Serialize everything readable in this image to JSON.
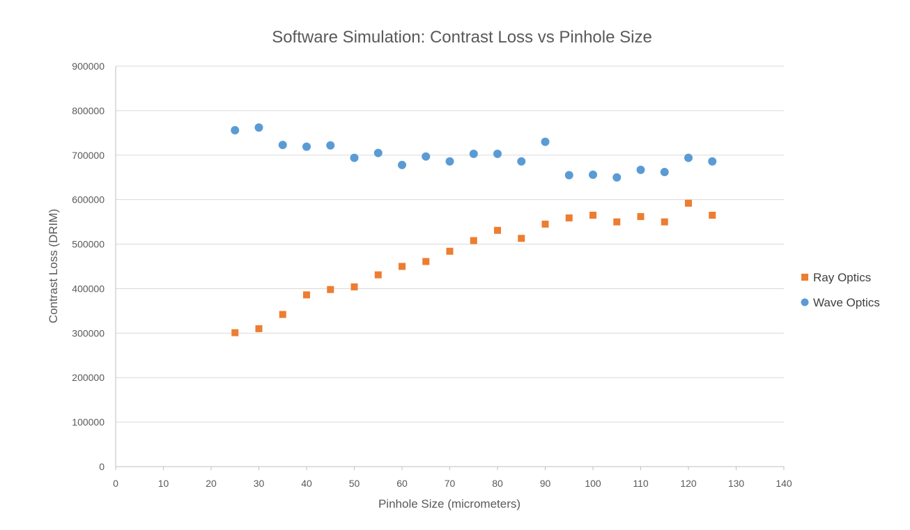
{
  "chart_data": {
    "type": "scatter",
    "title": "Software Simulation: Contrast Loss vs Pinhole Size",
    "xlabel": "Pinhole Size (micrometers)",
    "ylabel": "Contrast Loss (DRIM)",
    "xlim": [
      0,
      140
    ],
    "ylim": [
      0,
      900000
    ],
    "xticks": [
      0,
      10,
      20,
      30,
      40,
      50,
      60,
      70,
      80,
      90,
      100,
      110,
      120,
      130,
      140
    ],
    "yticks": [
      0,
      100000,
      200000,
      300000,
      400000,
      500000,
      600000,
      700000,
      800000,
      900000
    ],
    "grid": "horizontal",
    "legend_position": "right",
    "series": [
      {
        "name": "Ray Optics",
        "marker": "square",
        "color": "#ED7D31",
        "x": [
          25,
          30,
          35,
          40,
          45,
          50,
          55,
          60,
          65,
          70,
          75,
          80,
          85,
          90,
          95,
          100,
          105,
          110,
          115,
          120,
          125
        ],
        "y": [
          301000,
          310000,
          342000,
          386000,
          398000,
          404000,
          431000,
          450000,
          461000,
          484000,
          508000,
          531000,
          513000,
          545000,
          559000,
          565000,
          550000,
          562000,
          550000,
          592000,
          565000
        ]
      },
      {
        "name": "Wave Optics",
        "marker": "circle",
        "color": "#5B9BD5",
        "x": [
          25,
          30,
          35,
          40,
          45,
          50,
          55,
          60,
          65,
          70,
          75,
          80,
          85,
          90,
          95,
          100,
          105,
          110,
          115,
          120,
          125
        ],
        "y": [
          756000,
          762000,
          723000,
          719000,
          722000,
          694000,
          705000,
          678000,
          697000,
          686000,
          703000,
          703000,
          686000,
          730000,
          655000,
          656000,
          650000,
          667000,
          662000,
          694000,
          686000
        ]
      }
    ]
  }
}
